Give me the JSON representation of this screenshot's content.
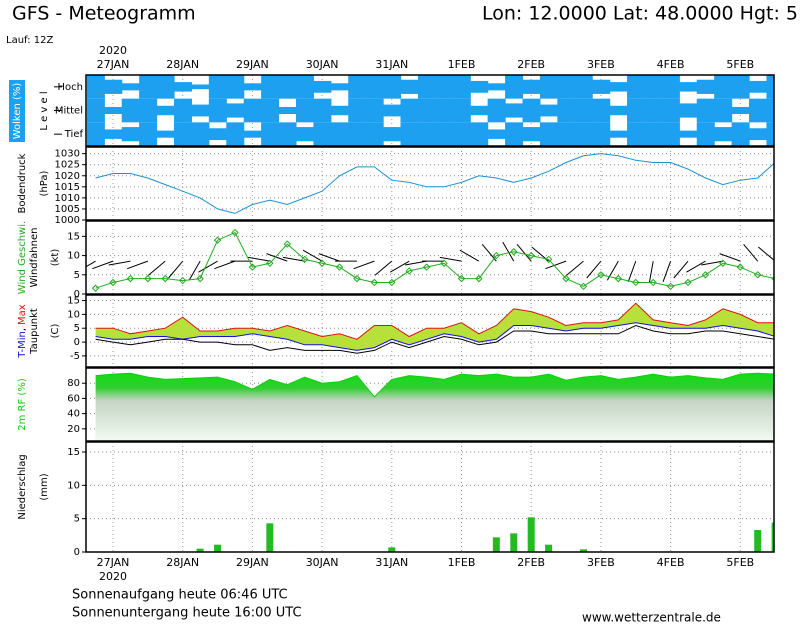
{
  "header": {
    "title": "GFS - Meteogramm",
    "location": "Lon: 12.0000  Lat: 48.0000  Hgt: 5",
    "run": "Lauf: 12Z"
  },
  "time_axis": {
    "year": "2020",
    "categories": [
      null,
      "27JAN",
      null,
      null,
      null,
      "28JAN",
      null,
      null,
      null,
      "29JAN",
      null,
      null,
      null,
      "30JAN",
      null,
      null,
      null,
      "31JAN",
      null,
      null,
      null,
      "1FEB",
      null,
      null,
      null,
      "2FEB",
      null,
      null,
      null,
      "3FEB",
      null,
      null,
      null,
      "4FEB",
      null,
      null,
      null,
      "5FEB",
      null,
      null
    ]
  },
  "chart_data": [
    {
      "type": "cloud-cover",
      "ylabel": "Wolken (%)",
      "level_label": "L e v e l",
      "color": "#1ea0f0",
      "series": [
        {
          "name": "Hoch",
          "values": [
            100,
            60,
            30,
            100,
            100,
            40,
            20,
            100,
            100,
            30,
            100,
            100,
            100,
            50,
            30,
            100,
            100,
            100,
            60,
            100,
            100,
            100,
            50,
            30,
            100,
            60,
            100,
            100,
            100,
            60,
            40,
            100,
            100,
            100,
            40,
            60,
            100,
            100,
            50,
            100
          ]
        },
        {
          "name": "Mittel",
          "values": [
            100,
            30,
            100,
            100,
            40,
            100,
            50,
            100,
            60,
            100,
            100,
            30,
            100,
            100,
            40,
            100,
            100,
            50,
            100,
            100,
            100,
            100,
            40,
            100,
            60,
            100,
            50,
            100,
            100,
            100,
            40,
            100,
            100,
            100,
            60,
            100,
            100,
            30,
            100,
            100
          ]
        },
        {
          "name": "Tief",
          "values": [
            100,
            40,
            60,
            100,
            30,
            100,
            100,
            50,
            100,
            30,
            100,
            100,
            60,
            100,
            100,
            100,
            100,
            60,
            100,
            100,
            100,
            100,
            100,
            40,
            100,
            60,
            100,
            100,
            100,
            100,
            30,
            100,
            100,
            100,
            30,
            100,
            60,
            100,
            50,
            100
          ]
        }
      ]
    },
    {
      "type": "line",
      "ylabel": "Bodendruck",
      "yunit": "(hPa)",
      "color": "#1e90d0",
      "grid": true,
      "ylim": [
        1000,
        1033
      ],
      "yticks": [
        1000,
        1005,
        1010,
        1015,
        1020,
        1025,
        1030
      ],
      "values": [
        1019,
        1021,
        1021,
        1019,
        1016,
        1013,
        1010,
        1005,
        1003,
        1007,
        1009,
        1007,
        1010,
        1013,
        1020,
        1024,
        1024,
        1018,
        1017,
        1015,
        1015,
        1017,
        1020,
        1019,
        1017,
        1019,
        1022,
        1026,
        1029,
        1030,
        1029,
        1027,
        1026,
        1026,
        1023,
        1019,
        1016,
        1018,
        1019,
        1026
      ]
    },
    {
      "type": "wind",
      "yunit": "(kt)",
      "grid": true,
      "ylim": [
        0,
        19
      ],
      "yticks": [
        0,
        5,
        10,
        15
      ],
      "series": [
        {
          "name": "Wind Geschwi.",
          "color": "#22aa22",
          "values": [
            1.5,
            3,
            4,
            4,
            4,
            3.5,
            4,
            14,
            16,
            7,
            8,
            13,
            9,
            8,
            7,
            4,
            3,
            3,
            6,
            7,
            8,
            4,
            4,
            10,
            11,
            10,
            9,
            4,
            2,
            5,
            4,
            3,
            3,
            2,
            3,
            5,
            8,
            7,
            5,
            4
          ]
        },
        {
          "name": "Windfahnen",
          "color": "#000000",
          "values": [
            240,
            250,
            260,
            250,
            230,
            220,
            210,
            240,
            250,
            270,
            280,
            290,
            280,
            300,
            290,
            270,
            250,
            230,
            240,
            260,
            270,
            280,
            300,
            320,
            330,
            320,
            310,
            250,
            230,
            220,
            210,
            200,
            190,
            200,
            220,
            240,
            260,
            290,
            320,
            310
          ]
        }
      ]
    },
    {
      "type": "temperature",
      "yunit": "(C)",
      "grid": true,
      "ylim": [
        -9,
        17
      ],
      "yticks": [
        -5,
        0,
        5,
        10,
        15
      ],
      "label_separator": ",",
      "series": [
        {
          "name": "T-Min",
          "color": "#1010e0",
          "values": [
            2,
            1,
            1,
            2,
            2,
            1,
            2,
            2,
            2,
            3,
            2,
            1,
            -1,
            -1,
            -2,
            -3,
            -2,
            1,
            -1,
            1,
            3,
            2,
            0,
            1,
            6,
            6,
            5,
            4,
            5,
            5,
            6,
            7,
            6,
            5,
            5,
            5,
            6,
            5,
            4,
            2
          ]
        },
        {
          "name": "Max",
          "color": "#e01010",
          "values": [
            5,
            5,
            3,
            4,
            5,
            9,
            4,
            4,
            5,
            5,
            4,
            6,
            4,
            2,
            3,
            1,
            6,
            6,
            2,
            5,
            5,
            7,
            3,
            6,
            12,
            11,
            9,
            6,
            7,
            7,
            8,
            14,
            8,
            7,
            6,
            8,
            12,
            10,
            7,
            7
          ]
        },
        {
          "name": "Taupunkt",
          "color": "#000000",
          "values": [
            1,
            0,
            -1,
            0,
            1,
            1,
            0,
            0,
            -1,
            -1,
            -3,
            -2,
            -3,
            -3,
            -3,
            -4,
            -3,
            0,
            -2,
            0,
            2,
            1,
            -1,
            0,
            4,
            4,
            3,
            3,
            3,
            3,
            3,
            6,
            4,
            3,
            3,
            4,
            4,
            3,
            2,
            1
          ]
        }
      ]
    },
    {
      "type": "area",
      "ylabel": "2m RF (%)",
      "color": "#11cc11",
      "grid": true,
      "ylim": [
        4,
        100
      ],
      "yticks": [
        20,
        40,
        60,
        80
      ],
      "values": [
        90,
        92,
        93,
        88,
        85,
        86,
        87,
        88,
        82,
        72,
        85,
        78,
        88,
        80,
        82,
        90,
        62,
        85,
        90,
        88,
        85,
        92,
        90,
        92,
        88,
        88,
        92,
        84,
        88,
        90,
        85,
        88,
        92,
        88,
        90,
        87,
        85,
        92,
        93,
        92
      ]
    },
    {
      "type": "bar",
      "ylabel": "Niederschlag",
      "yunit": "(mm)",
      "color": "#22bb22",
      "grid": true,
      "ylim": [
        0,
        16.5
      ],
      "yticks": [
        0,
        5,
        10,
        15
      ],
      "values": [
        0,
        0,
        0,
        0,
        0,
        0,
        0.5,
        1.1,
        0,
        0,
        4.3,
        0,
        0,
        0,
        0,
        0,
        0,
        0.7,
        0,
        0,
        0,
        0,
        0,
        2.2,
        2.8,
        5.2,
        1.1,
        0,
        0.4,
        0,
        0,
        0,
        0,
        0,
        0,
        0,
        0,
        0,
        3.3,
        4.4
      ]
    }
  ],
  "footer": {
    "sunrise": "Sonnenaufgang heute 06:46 UTC",
    "sunset": "Sonnenuntergang heute 16:00 UTC",
    "website": "www.wetterzentrale.de"
  }
}
